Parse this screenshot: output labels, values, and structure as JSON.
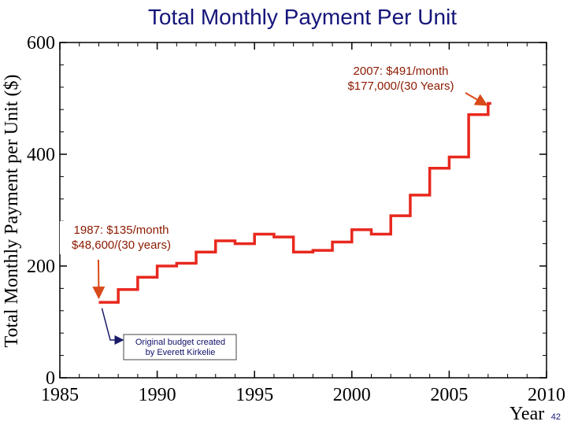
{
  "chart_data": {
    "type": "line",
    "title": "Total Monthly Payment Per Unit",
    "xlabel": "Year",
    "ylabel": "Total Monthly Payment per Unit ($)",
    "xlim": [
      1985,
      2010
    ],
    "ylim": [
      0,
      600
    ],
    "x_ticks": [
      1985,
      1990,
      1995,
      2000,
      2005,
      2010
    ],
    "y_ticks": [
      0,
      200,
      400,
      600
    ],
    "grid": false,
    "line_color": "#e8281e",
    "series": [
      {
        "step": true,
        "x": [
          1987,
          1988,
          1989,
          1990,
          1991,
          1992,
          1993,
          1994,
          1995,
          1996,
          1997,
          1998,
          1999,
          2000,
          2001,
          2002,
          2003,
          2004,
          2005,
          2006,
          2007
        ],
        "y": [
          135,
          158,
          180,
          200,
          205,
          225,
          245,
          240,
          257,
          252,
          225,
          228,
          243,
          265,
          257,
          290,
          327,
          375,
          395,
          471,
          491
        ]
      }
    ],
    "annotations": [
      {
        "lines": [
          "2007: $491/month",
          "$177,000/(30 Years)"
        ],
        "target": [
          2007,
          491
        ]
      },
      {
        "lines": [
          "1987: $135/month",
          "$48,600/(30 years)"
        ],
        "target": [
          1987,
          135
        ]
      },
      {
        "lines": [
          "Original budget created",
          "by Everett Kirkelie"
        ],
        "boxed": true,
        "target": [
          1987,
          130
        ]
      }
    ]
  },
  "page_number": "42"
}
